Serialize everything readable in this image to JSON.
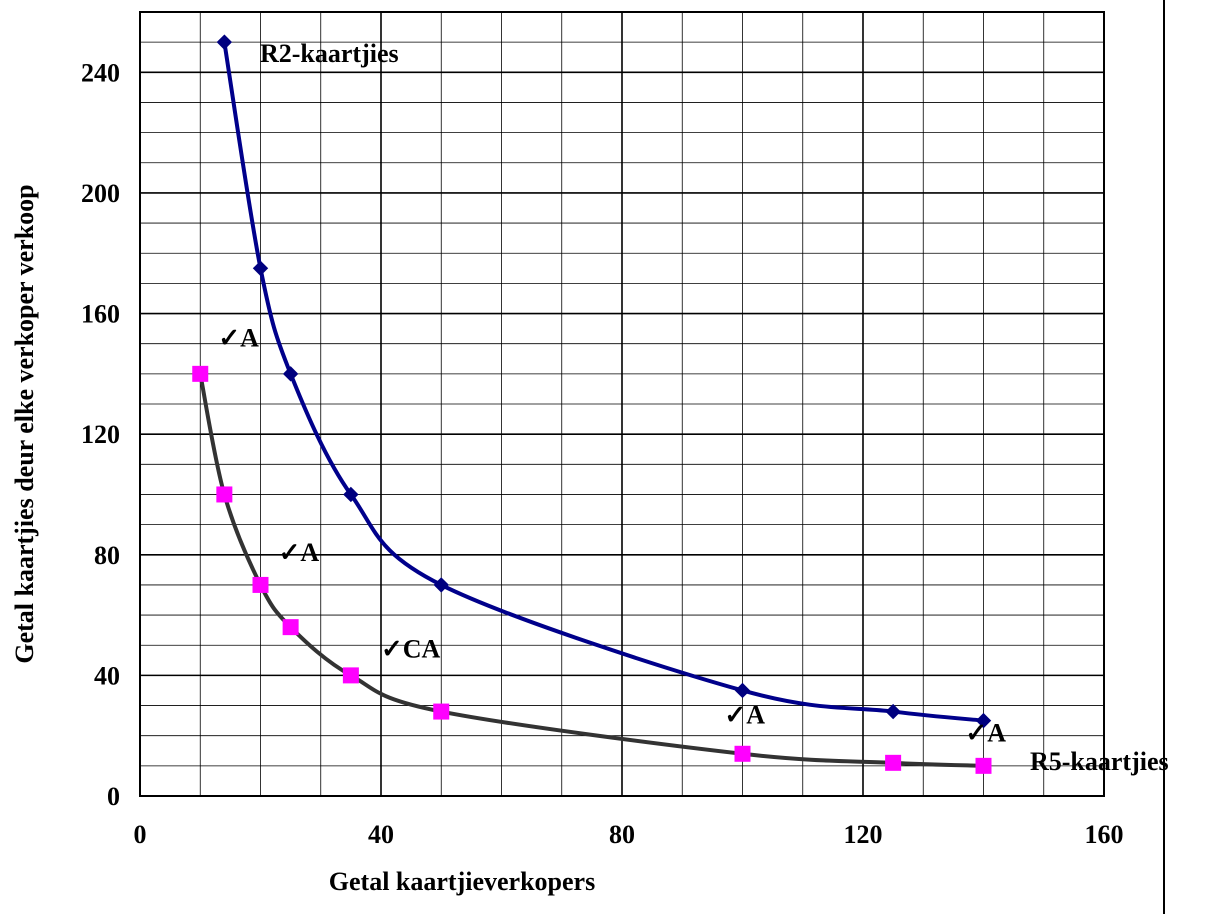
{
  "chart_data": {
    "type": "line",
    "xlabel": "Getal kaartjieverkopers",
    "ylabel": "Getal kaartjies deur elke verkoper verkoop",
    "xlim": [
      0,
      160
    ],
    "ylim": [
      0,
      260
    ],
    "xticks": [
      0,
      40,
      80,
      120,
      160
    ],
    "yticks": [
      0,
      40,
      80,
      120,
      160,
      200,
      240
    ],
    "x_minor_step": 10,
    "y_minor_step": 10,
    "grid": true,
    "series": [
      {
        "name": "R2-kaartjies",
        "color": "#00008B",
        "marker": "diamond",
        "marker_color": "#00007F",
        "x": [
          14,
          20,
          25,
          35,
          50,
          100,
          125,
          140
        ],
        "y": [
          250,
          175,
          140,
          100,
          70,
          35,
          28,
          25
        ]
      },
      {
        "name": "R5-kaartjies",
        "color": "#333333",
        "marker": "square",
        "marker_color": "#FF00FF",
        "x": [
          10,
          14,
          20,
          25,
          35,
          50,
          100,
          125,
          140
        ],
        "y": [
          140,
          100,
          70,
          56,
          40,
          28,
          14,
          11,
          10
        ]
      }
    ],
    "annotations": [
      {
        "text": "✓A",
        "x": 13,
        "y": 149
      },
      {
        "text": "✓A",
        "x": 23,
        "y": 78
      },
      {
        "text": "✓CA",
        "x": 40,
        "y": 46
      },
      {
        "text": "✓A",
        "x": 97,
        "y": 24
      },
      {
        "text": "✓A",
        "x": 137,
        "y": 18
      }
    ]
  }
}
